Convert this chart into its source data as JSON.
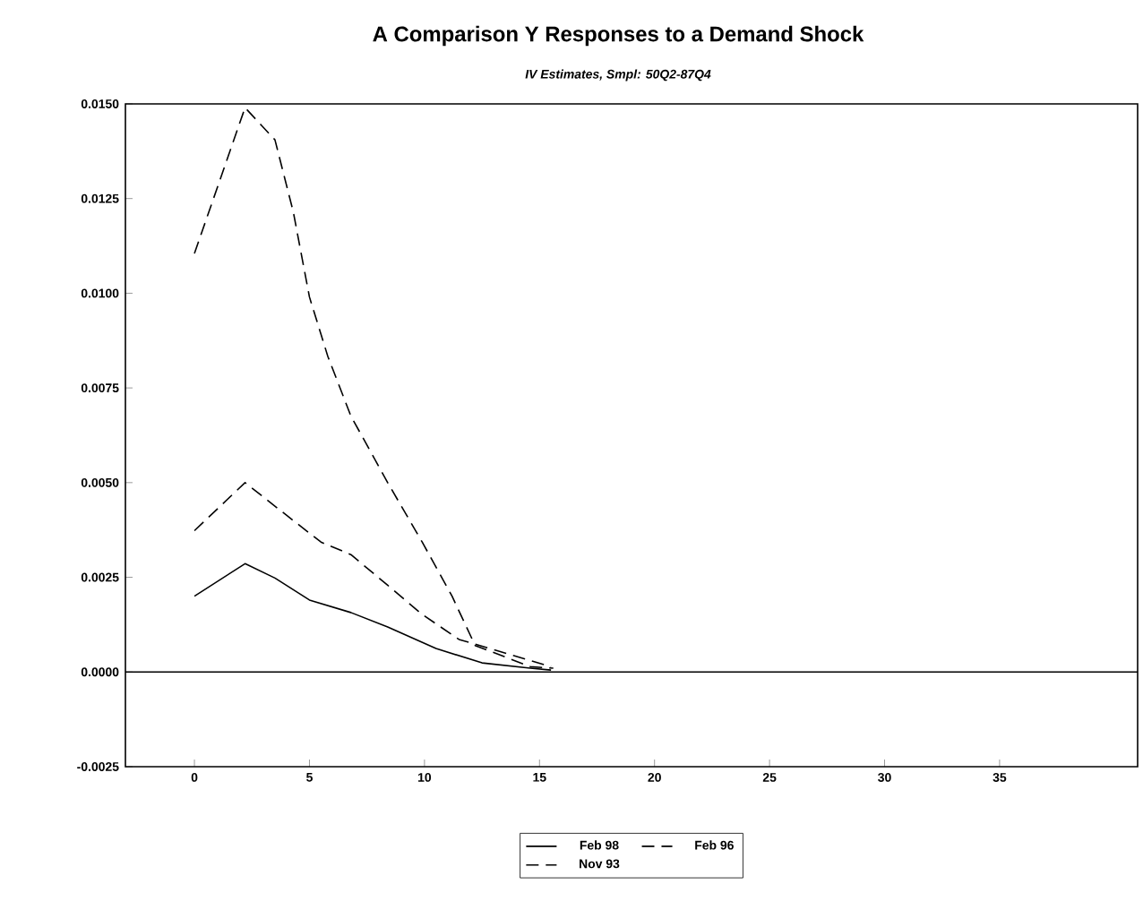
{
  "chart_data": {
    "type": "line",
    "title": "A Comparison Y Responses to a Demand Shock",
    "subtitle": "IV Estimates, Smpl: 50Q2-87Q4",
    "xlim": [
      -3,
      41
    ],
    "ylim": [
      -0.0025,
      0.015
    ],
    "xticks": [
      0,
      5,
      10,
      15,
      20,
      25,
      30,
      35
    ],
    "yticks": [
      {
        "value": -0.0025,
        "label": "-0.0025"
      },
      {
        "value": 0,
        "label": "0.0000"
      },
      {
        "value": 0.0025,
        "label": "0.0025"
      },
      {
        "value": 0.005,
        "label": "0.0050"
      },
      {
        "value": 0.0075,
        "label": "0.0075"
      },
      {
        "value": 0.01,
        "label": "0.0100"
      },
      {
        "value": 0.0125,
        "label": "0.0125"
      },
      {
        "value": 0.015,
        "label": "0.0150"
      }
    ],
    "ref_lines": [
      {
        "axis": "y",
        "value": 0,
        "color": "#000000"
      }
    ],
    "legend": "bottom",
    "grid": false,
    "marker": "none",
    "series": [
      {
        "name": "Feb 98",
        "color": "#000000",
        "line_style": "solid",
        "x": [
          0,
          2.2,
          3.5,
          5,
          6.8,
          8.4,
          10.5,
          12.5,
          14.6,
          15.5
        ],
        "values": [
          0.002,
          0.00286,
          0.00248,
          0.0019,
          0.00157,
          0.00119,
          0.00062,
          0.00024,
          0.0001,
          5e-05
        ]
      },
      {
        "name": "Feb 96",
        "color": "#000000",
        "line_style": "dashed",
        "x": [
          0,
          2.2,
          3.5,
          4.3,
          5,
          5.8,
          6.8,
          8.4,
          9.9,
          11.2,
          12.2,
          14.6,
          15.6
        ],
        "values": [
          0.01105,
          0.0149,
          0.01405,
          0.01214,
          0.0099,
          0.00833,
          0.00676,
          0.005,
          0.00343,
          0.002,
          0.0007,
          0.00014,
          0.0001
        ]
      },
      {
        "name": "Nov 93",
        "color": "#000000",
        "line_style": "dashed",
        "x": [
          0,
          2.2,
          4,
          5.5,
          6.8,
          8.4,
          9.9,
          11.5,
          13.6,
          15.5
        ],
        "values": [
          0.00373,
          0.005,
          0.00414,
          0.00343,
          0.0031,
          0.00229,
          0.00152,
          0.00086,
          0.00048,
          0.00014
        ]
      }
    ]
  }
}
